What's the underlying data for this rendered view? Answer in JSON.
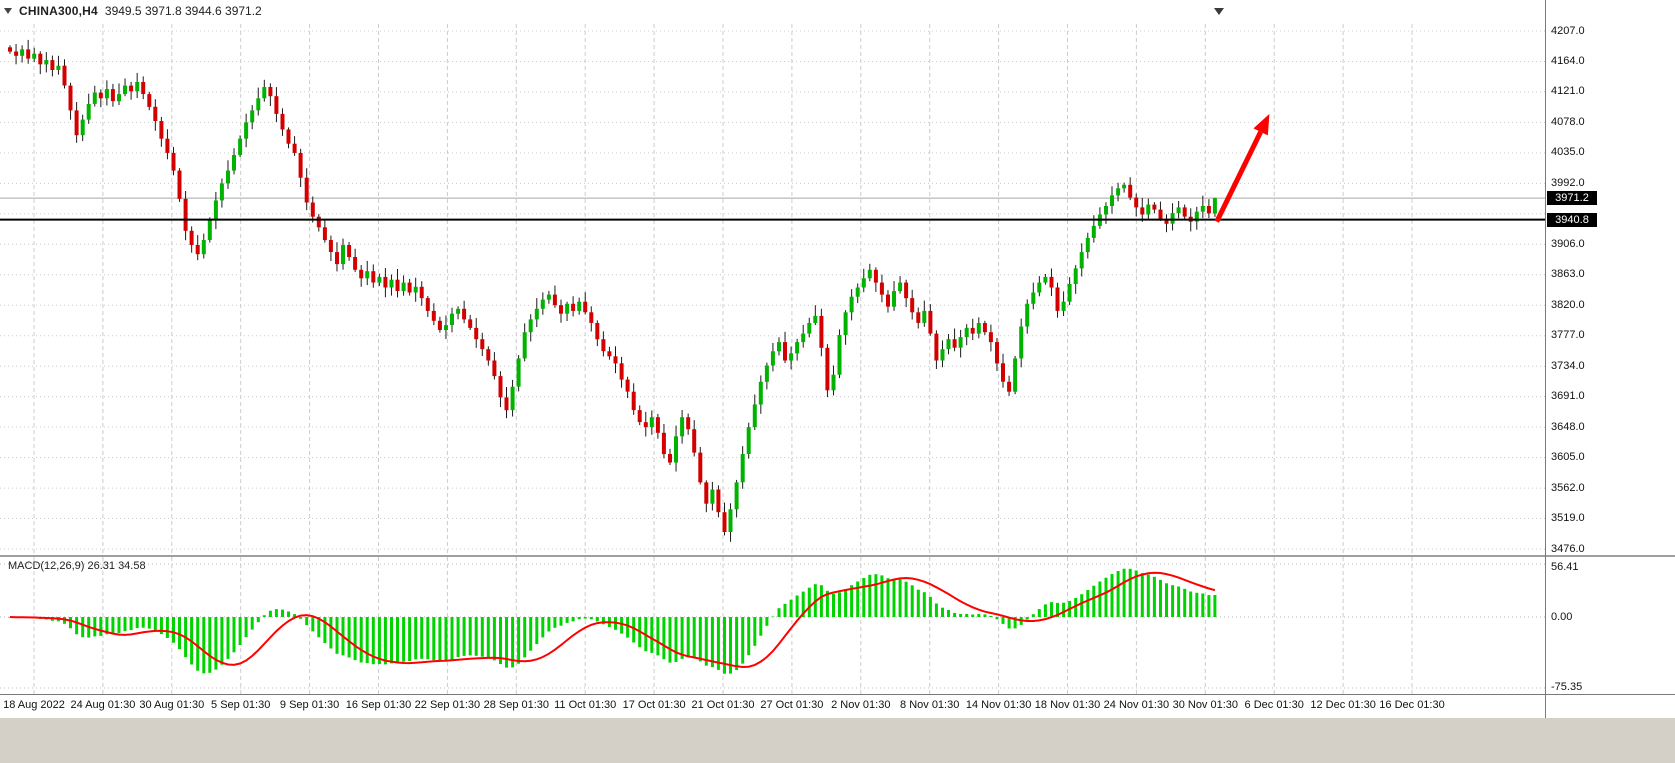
{
  "header": {
    "symbol_period": "CHINA300,H4",
    "ohlc": "3949.5 3971.8 3944.6 3971.2"
  },
  "price_axis": {
    "bid_tag": "3971.2",
    "hline_tag": "3940.8"
  },
  "time_axis": {
    "labels": [
      "18 Aug 2022",
      "24 Aug 01:30",
      "30 Aug 01:30",
      "5 Sep 01:30",
      "9 Sep 01:30",
      "16 Sep 01:30",
      "22 Sep 01:30",
      "28 Sep 01:30",
      "11 Oct 01:30",
      "17 Oct 01:30",
      "21 Oct 01:30",
      "27 Oct 01:30",
      "2 Nov 01:30",
      "8 Nov 01:30",
      "14 Nov 01:30",
      "18 Nov 01:30",
      "24 Nov 01:30",
      "30 Nov 01:30",
      "6 Dec 01:30",
      "12 Dec 01:30",
      "16 Dec 01:30"
    ]
  },
  "macd_panel": {
    "label": "MACD(12,26,9)",
    "values": "26.31 34.58",
    "axis_labels": [
      "56.41",
      "0.00",
      "-75.35"
    ]
  },
  "colors": {
    "bull": "#00b300",
    "bear": "#d40000",
    "wick": "#1b1b1b",
    "grid": "#cccccc",
    "bid_line": "#a8a8a8",
    "hline": "#000000",
    "tag_bg": "#000000",
    "tag_text": "#ffffff",
    "macd_hist": "#00d300",
    "macd_signal": "#ff0000",
    "arrow": "#ff0000"
  },
  "chart_data": {
    "type": "candlestick",
    "title": "CHINA300,H4",
    "last_candle_ohlc": {
      "open": 3949.5,
      "high": 3971.8,
      "low": 3944.6,
      "close": 3971.2
    },
    "bid_price": 3971.2,
    "horizontal_line_price": 3940.8,
    "y_axis": {
      "step": 43.0,
      "ticks": [
        4207.0,
        4164.0,
        4121.0,
        4078.0,
        4035.0,
        3992.0,
        3949.0,
        3906.0,
        3863.0,
        3820.0,
        3777.0,
        3734.0,
        3691.0,
        3648.0,
        3605.0,
        3562.0,
        3519.0,
        3476.0
      ]
    },
    "x_axis": {
      "tick_labels": [
        "18 Aug 2022",
        "24 Aug 01:30",
        "30 Aug 01:30",
        "5 Sep 01:30",
        "9 Sep 01:30",
        "16 Sep 01:30",
        "22 Sep 01:30",
        "28 Sep 01:30",
        "11 Oct 01:30",
        "17 Oct 01:30",
        "21 Oct 01:30",
        "27 Oct 01:30",
        "2 Nov 01:30",
        "8 Nov 01:30",
        "14 Nov 01:30",
        "18 Nov 01:30",
        "24 Nov 01:30",
        "30 Nov 01:30",
        "6 Dec 01:30",
        "12 Dec 01:30",
        "16 Dec 01:30"
      ]
    },
    "closes": [
      4178,
      4172,
      4181,
      4168,
      4175,
      4160,
      4166,
      4152,
      4158,
      4130,
      4095,
      4060,
      4082,
      4104,
      4120,
      4112,
      4125,
      4108,
      4118,
      4130,
      4122,
      4135,
      4118,
      4100,
      4080,
      4055,
      4035,
      4010,
      3970,
      3925,
      3905,
      3892,
      3912,
      3940,
      3968,
      3992,
      4010,
      4032,
      4055,
      4078,
      4095,
      4112,
      4128,
      4115,
      4090,
      4068,
      4048,
      4035,
      4000,
      3965,
      3945,
      3930,
      3912,
      3895,
      3878,
      3905,
      3888,
      3870,
      3858,
      3868,
      3852,
      3860,
      3845,
      3856,
      3840,
      3852,
      3838,
      3846,
      3830,
      3812,
      3798,
      3785,
      3792,
      3808,
      3815,
      3800,
      3788,
      3772,
      3758,
      3742,
      3720,
      3690,
      3672,
      3705,
      3745,
      3782,
      3800,
      3815,
      3828,
      3835,
      3820,
      3808,
      3822,
      3812,
      3825,
      3810,
      3795,
      3772,
      3755,
      3748,
      3738,
      3715,
      3698,
      3672,
      3655,
      3648,
      3662,
      3640,
      3610,
      3598,
      3635,
      3662,
      3645,
      3612,
      3570,
      3540,
      3560,
      3528,
      3500,
      3532,
      3570,
      3610,
      3648,
      3680,
      3712,
      3735,
      3755,
      3768,
      3742,
      3752,
      3768,
      3780,
      3795,
      3805,
      3760,
      3700,
      3722,
      3778,
      3810,
      3832,
      3845,
      3858,
      3870,
      3852,
      3835,
      3818,
      3840,
      3852,
      3830,
      3810,
      3795,
      3812,
      3780,
      3742,
      3758,
      3772,
      3760,
      3775,
      3788,
      3780,
      3795,
      3782,
      3768,
      3738,
      3712,
      3698,
      3745,
      3790,
      3822,
      3838,
      3852,
      3860,
      3845,
      3812,
      3825,
      3850,
      3872,
      3895,
      3915,
      3932,
      3948,
      3960,
      3975,
      3985,
      3990,
      3972,
      3958,
      3948,
      3962,
      3955,
      3942,
      3935,
      3950,
      3958,
      3945,
      3938,
      3952,
      3960,
      3949.5,
      3971.2
    ],
    "indicator": {
      "name": "MACD",
      "fast_ema": 12,
      "slow_ema": 26,
      "signal_period": 9,
      "current_main": 26.31,
      "current_signal": 34.58,
      "scale_labels": [
        56.41,
        0.0,
        -75.35
      ]
    },
    "annotations": [
      {
        "type": "up-arrow",
        "color": "#ff0000",
        "from": {
          "candle_index": 199.3,
          "price": 3938
        },
        "to": {
          "candle_index": 208.0,
          "price": 4090
        }
      }
    ]
  }
}
